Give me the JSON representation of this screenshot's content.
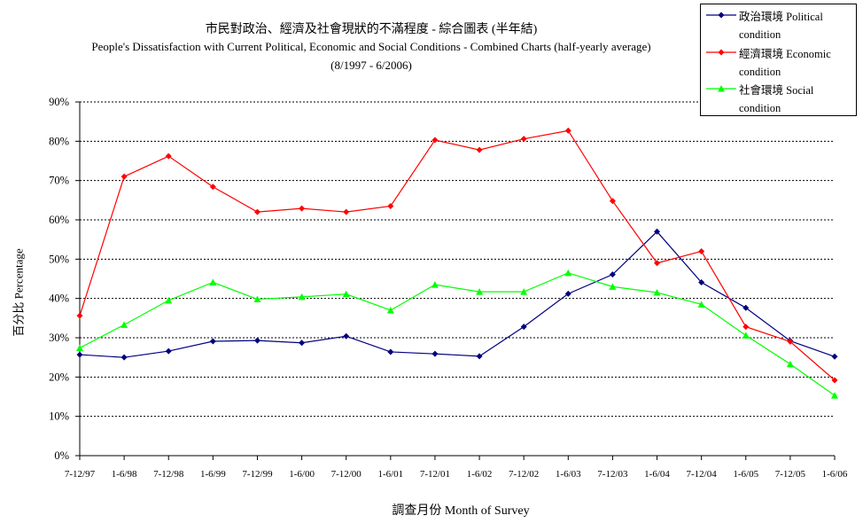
{
  "chart_data": {
    "type": "line",
    "title_zh": "市民對政治、經濟及社會現狀的不滿程度 - 綜合圖表 (半年結)",
    "title_en": "People's Dissatisfaction with Current Political, Economic and Social Conditions - Combined Charts  (half-yearly average)",
    "subtitle": "(8/1997 - 6/2006)",
    "xlabel": "調查月份 Month of Survey",
    "ylabel": "百分比 Percentage",
    "ylim": [
      0,
      90
    ],
    "yticks": [
      "0%",
      "10%",
      "20%",
      "30%",
      "40%",
      "50%",
      "60%",
      "70%",
      "80%",
      "90%"
    ],
    "grid": "horizontal dashed",
    "legend_position": "top-right",
    "categories": [
      "7-12/97",
      "1-6/98",
      "7-12/98",
      "1-6/99",
      "7-12/99",
      "1-6/00",
      "7-12/00",
      "1-6/01",
      "7-12/01",
      "1-6/02",
      "7-12/02",
      "1-6/03",
      "7-12/03",
      "1-6/04",
      "7-12/04",
      "1-6/05",
      "7-12/05",
      "1-6/06"
    ],
    "series": [
      {
        "name": "政治環境 Political condition",
        "color": "#000080",
        "marker": "diamond",
        "values": [
          25.7,
          25.0,
          26.6,
          29.1,
          29.3,
          28.7,
          30.4,
          26.4,
          25.9,
          25.3,
          32.8,
          41.2,
          46.1,
          57.0,
          44.1,
          37.6,
          29.2,
          25.2
        ]
      },
      {
        "name": "經濟環境 Economic condition",
        "color": "#ff0000",
        "marker": "diamond",
        "values": [
          35.6,
          71.0,
          76.2,
          68.4,
          62.0,
          62.9,
          62.0,
          63.5,
          80.3,
          77.8,
          80.6,
          82.7,
          64.8,
          49.0,
          52.0,
          32.8,
          29.0,
          19.2
        ]
      },
      {
        "name": "社會環境 Social condition",
        "color": "#00ff00",
        "marker": "triangle",
        "values": [
          27.4,
          33.3,
          39.5,
          44.1,
          39.8,
          40.4,
          41.1,
          37.0,
          43.5,
          41.7,
          41.7,
          46.5,
          43.0,
          41.5,
          38.5,
          30.6,
          23.3,
          15.3
        ]
      }
    ]
  }
}
